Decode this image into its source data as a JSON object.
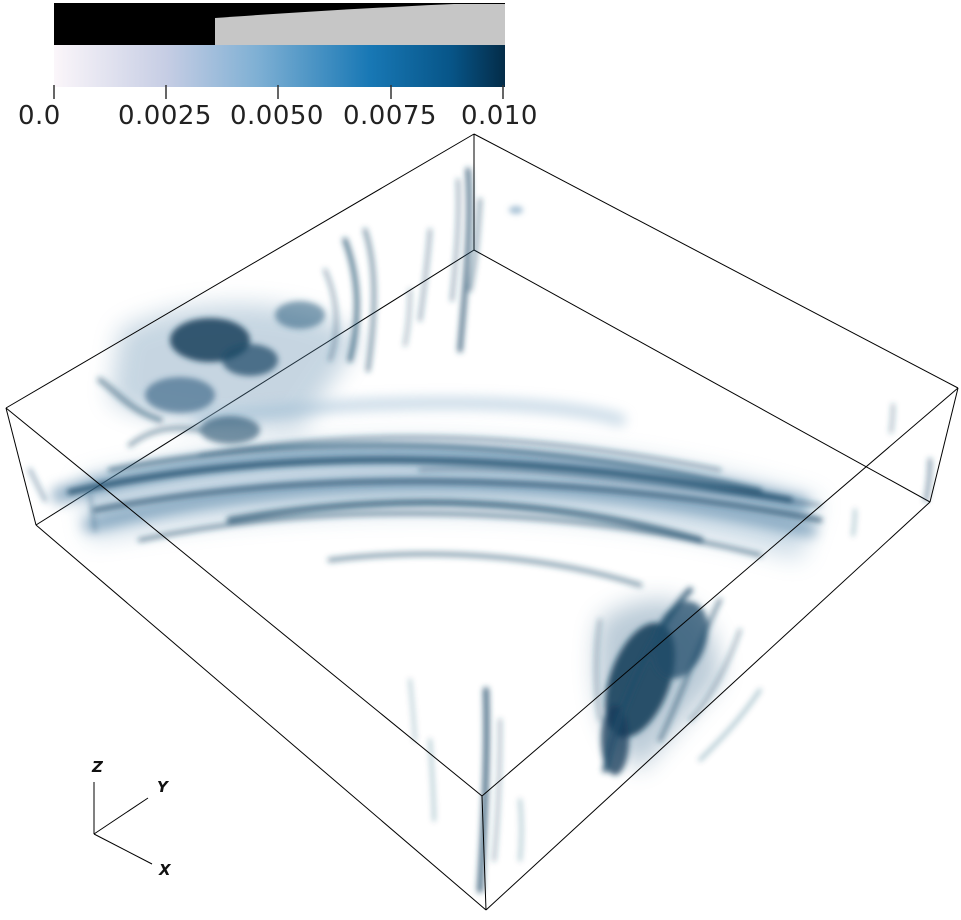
{
  "colorbar": {
    "ticks": [
      "0.0",
      "0.0025",
      "0.0050",
      "0.0075",
      "0.010"
    ],
    "min": 0.0,
    "max": 0.01,
    "opacity_range": [
      0.0036,
      0.01
    ],
    "colors": [
      "#f7f2f8",
      "#bcc9e3",
      "#71a8d0",
      "#1f78b4",
      "#045a8d",
      "#03283f"
    ]
  },
  "axes": {
    "z": "Z",
    "y": "Y",
    "x": "X"
  },
  "volume_color": "#1f4d6b"
}
